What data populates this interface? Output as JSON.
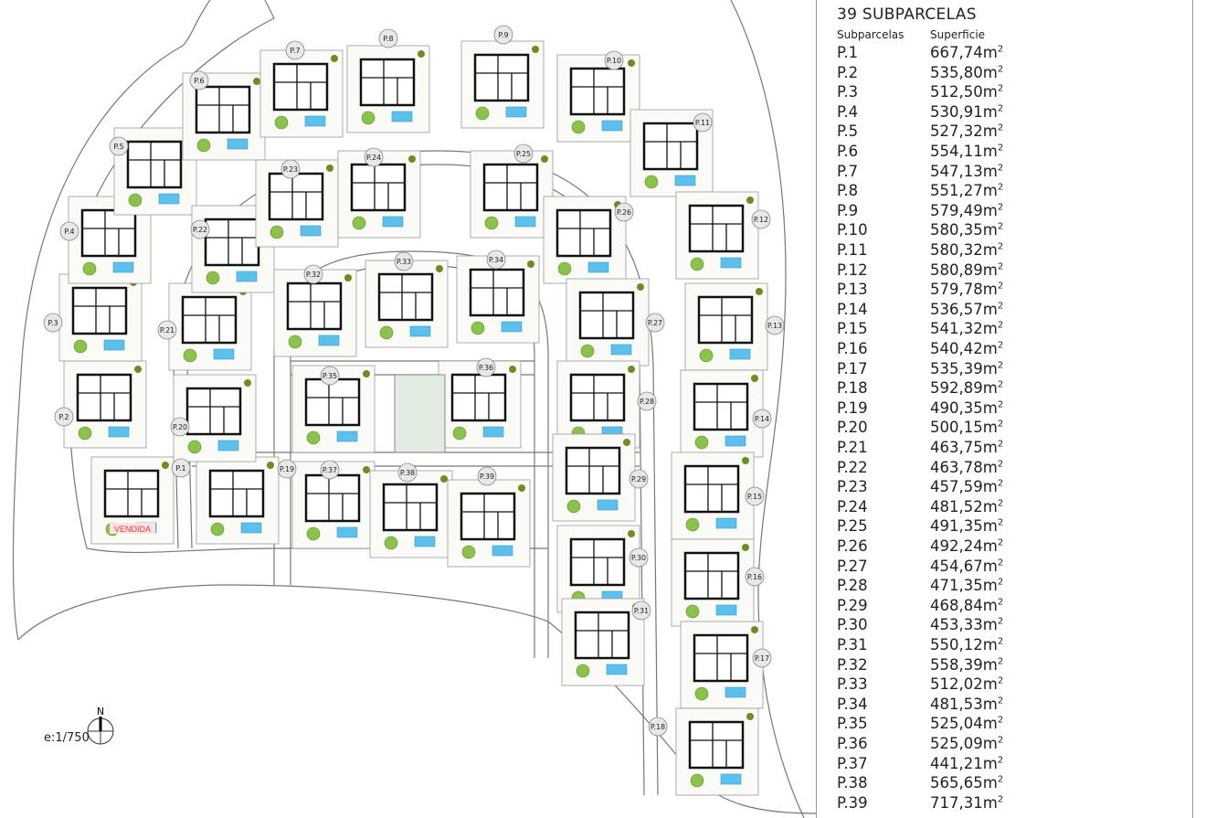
{
  "plan": {
    "sold_label": "VENDIDA",
    "scale": "e:1/750",
    "north_label": "N",
    "colors": {
      "pool": "#5bc0eb",
      "tree": "#8bc34a",
      "hedge": "#6b8e23",
      "house": "#111111",
      "road": "#888888",
      "sold": "#e53935"
    },
    "plot_labels": [
      "P.1",
      "P.2",
      "P.3",
      "P.4",
      "P.5",
      "P.6",
      "P.7",
      "P.8",
      "P.9",
      "P.10",
      "P.11",
      "P.12",
      "P.13",
      "P.14",
      "P.15",
      "P.16",
      "P.17",
      "P.18",
      "P.19",
      "P.20",
      "P.21",
      "P.22",
      "P.23",
      "P.24",
      "P.25",
      "P.26",
      "P.27",
      "P.28",
      "P.29",
      "P.30",
      "P.31",
      "P.32",
      "P.33",
      "P.34",
      "P.35",
      "P.36",
      "P.37",
      "P.38",
      "P.39"
    ]
  },
  "table": {
    "title": "39 SUBPARCELAS",
    "col_plot": "Subparcelas",
    "col_area": "Superficie",
    "unit": "m",
    "unit_exp": "2",
    "rows": [
      {
        "id": "P.1",
        "area": "667,74"
      },
      {
        "id": "P.2",
        "area": "535,80"
      },
      {
        "id": "P.3",
        "area": "512,50"
      },
      {
        "id": "P.4",
        "area": "530,91"
      },
      {
        "id": "P.5",
        "area": "527,32"
      },
      {
        "id": "P.6",
        "area": "554,11"
      },
      {
        "id": "P.7",
        "area": "547,13"
      },
      {
        "id": "P.8",
        "area": "551,27"
      },
      {
        "id": "P.9",
        "area": "579,49"
      },
      {
        "id": "P.10",
        "area": "580,35"
      },
      {
        "id": "P.11",
        "area": "580,32"
      },
      {
        "id": "P.12",
        "area": "580,89"
      },
      {
        "id": "P.13",
        "area": "579,78"
      },
      {
        "id": "P.14",
        "area": "536,57"
      },
      {
        "id": "P.15",
        "area": "541,32"
      },
      {
        "id": "P.16",
        "area": "540,42"
      },
      {
        "id": "P.17",
        "area": "535,39"
      },
      {
        "id": "P.18",
        "area": "592,89"
      },
      {
        "id": "P.19",
        "area": "490,35"
      },
      {
        "id": "P.20",
        "area": "500,15"
      },
      {
        "id": "P.21",
        "area": "463,75"
      },
      {
        "id": "P.22",
        "area": "463,78"
      },
      {
        "id": "P.23",
        "area": "457,59"
      },
      {
        "id": "P.24",
        "area": "481,52"
      },
      {
        "id": "P.25",
        "area": "491,35"
      },
      {
        "id": "P.26",
        "area": "492,24"
      },
      {
        "id": "P.27",
        "area": "454,67"
      },
      {
        "id": "P.28",
        "area": "471,35"
      },
      {
        "id": "P.29",
        "area": "468,84"
      },
      {
        "id": "P.30",
        "area": "453,33"
      },
      {
        "id": "P.31",
        "area": "550,12"
      },
      {
        "id": "P.32",
        "area": "558,39"
      },
      {
        "id": "P.33",
        "area": "512,02"
      },
      {
        "id": "P.34",
        "area": "481,53"
      },
      {
        "id": "P.35",
        "area": "525,04"
      },
      {
        "id": "P.36",
        "area": "525,09"
      },
      {
        "id": "P.37",
        "area": "441,21"
      },
      {
        "id": "P.38",
        "area": "565,65"
      },
      {
        "id": "P.39",
        "area": "717,31"
      }
    ]
  }
}
